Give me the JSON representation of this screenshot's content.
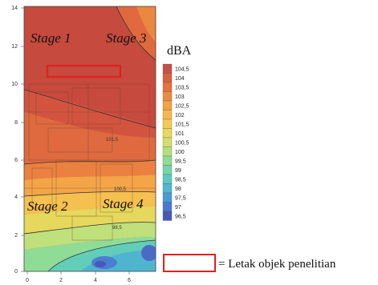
{
  "map": {
    "x_ticks": [
      "0",
      "2",
      "4",
      "6"
    ],
    "y_ticks": [
      "0",
      "2",
      "4",
      "6",
      "8",
      "10",
      "12",
      "14"
    ],
    "stages": [
      "Stage 1",
      "Stage 3",
      "Stage 2",
      "Stage 4"
    ],
    "contour_labels": [
      "101,5",
      "100,5",
      "98,5"
    ]
  },
  "legend": {
    "title": "dBA",
    "levels": [
      "104,5",
      "104",
      "103,5",
      "103",
      "102,5",
      "102",
      "101,5",
      "101",
      "100,5",
      "100",
      "99,5",
      "99",
      "98,5",
      "98",
      "97,5",
      "97",
      "96,5"
    ],
    "colors": [
      "#c94f45",
      "#d9603f",
      "#e5733d",
      "#ee8a3f",
      "#f3a244",
      "#f6b84c",
      "#f3cb52",
      "#ead85e",
      "#d4df6a",
      "#b5e07d",
      "#92dc93",
      "#74d6aa",
      "#5ccac0",
      "#4fb7cf",
      "#4a9bd3",
      "#4a79cd",
      "#4a57b9"
    ]
  },
  "key": {
    "text": "= Letak objek penelitian",
    "box_color": "#e02020"
  }
}
